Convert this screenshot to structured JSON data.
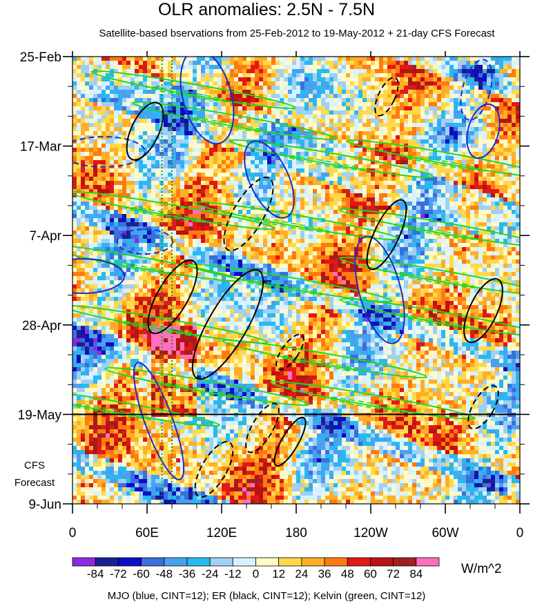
{
  "title": "OLR anomalies: 2.5N - 7.5N",
  "subtitle": "Satellite-based bservations from 25-Feb-2012 to 19-May-2012 + 21-day CFS Forecast",
  "cfs_label_1": "CFS",
  "cfs_label_2": "Forecast",
  "units": "W/m^2",
  "footer": "MJO (blue, CINT=12); ER (black, CINT=12); Kelvin (green, CINT=12)",
  "chart_data": {
    "type": "heatmap",
    "title": "OLR anomalies: 2.5N - 7.5N",
    "subtitle": "Satellite-based bservations from 25-Feb-2012 to 19-May-2012 + 21-day CFS Forecast",
    "x_tick_labels": [
      "0",
      "60E",
      "120E",
      "180",
      "120W",
      "60W",
      "0"
    ],
    "x_ticks_deg_east": [
      0,
      60,
      120,
      180,
      240,
      300,
      360
    ],
    "x_range_deg_east": [
      0,
      360
    ],
    "y_tick_labels": [
      "25-Feb",
      "17-Mar",
      "7-Apr",
      "28-Apr",
      "19-May",
      "9-Jun"
    ],
    "y_range": [
      "25-Feb-2012",
      "9-Jun-2012"
    ],
    "observation_end": "19-May-2012",
    "forecast_days": 21,
    "colorbar": {
      "units": "W/m^2",
      "levels": [
        -84,
        -72,
        -60,
        -48,
        -36,
        -24,
        -12,
        0,
        12,
        24,
        36,
        48,
        60,
        72,
        84
      ],
      "tick_labels": [
        "-84",
        "-72",
        "-60",
        "-48",
        "-36",
        "-24",
        "-12",
        "0",
        "12",
        "24",
        "36",
        "48",
        "60",
        "72",
        "84"
      ],
      "colors": [
        "#8c2be2",
        "#1c1f8f",
        "#0d0dc4",
        "#3a6fdc",
        "#4a9ff0",
        "#29b8f0",
        "#9fd0f4",
        "#d8f2ff",
        "#fffac8",
        "#ffd94a",
        "#ffae28",
        "#ff7a10",
        "#e01818",
        "#bd1010",
        "#a02020",
        "#ff6fc0"
      ]
    },
    "contour_overlays": [
      {
        "name": "MJO",
        "color": "blue",
        "cint": 12
      },
      {
        "name": "ER",
        "color": "black",
        "cint": 12
      },
      {
        "name": "Kelvin",
        "color": "green",
        "cint": 12
      }
    ]
  }
}
